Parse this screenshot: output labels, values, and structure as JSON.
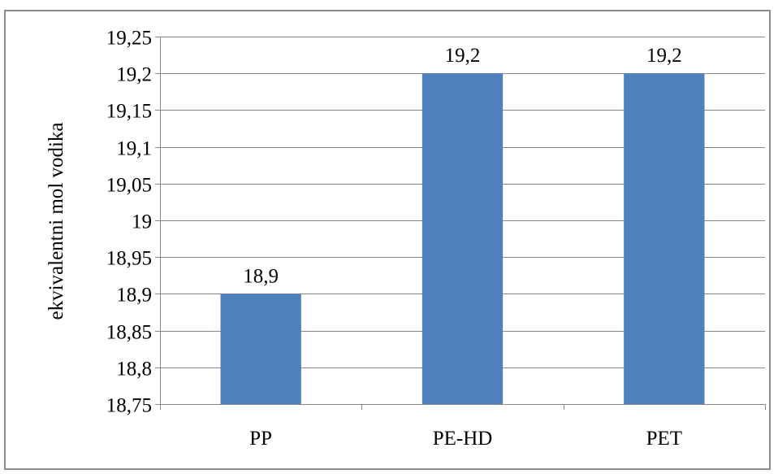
{
  "chart_data": {
    "type": "bar",
    "categories": [
      "PP",
      "PE-HD",
      "PET"
    ],
    "values": [
      18.9,
      19.2,
      19.2
    ],
    "data_labels": [
      "18,9",
      "19,2",
      "19,2"
    ],
    "title": "",
    "xlabel": "",
    "ylabel": "ekvivalentni mol vodika",
    "ylim": [
      18.75,
      19.25
    ],
    "ytick_step": 0.05,
    "yticks": [
      "18,75",
      "18,8",
      "18,85",
      "18,9",
      "18,95",
      "19",
      "19,05",
      "19,1",
      "19,15",
      "19,2",
      "19,25"
    ],
    "grid": true,
    "legend": "none",
    "bar_color": "#4F81BD",
    "grid_color": "#888888"
  }
}
